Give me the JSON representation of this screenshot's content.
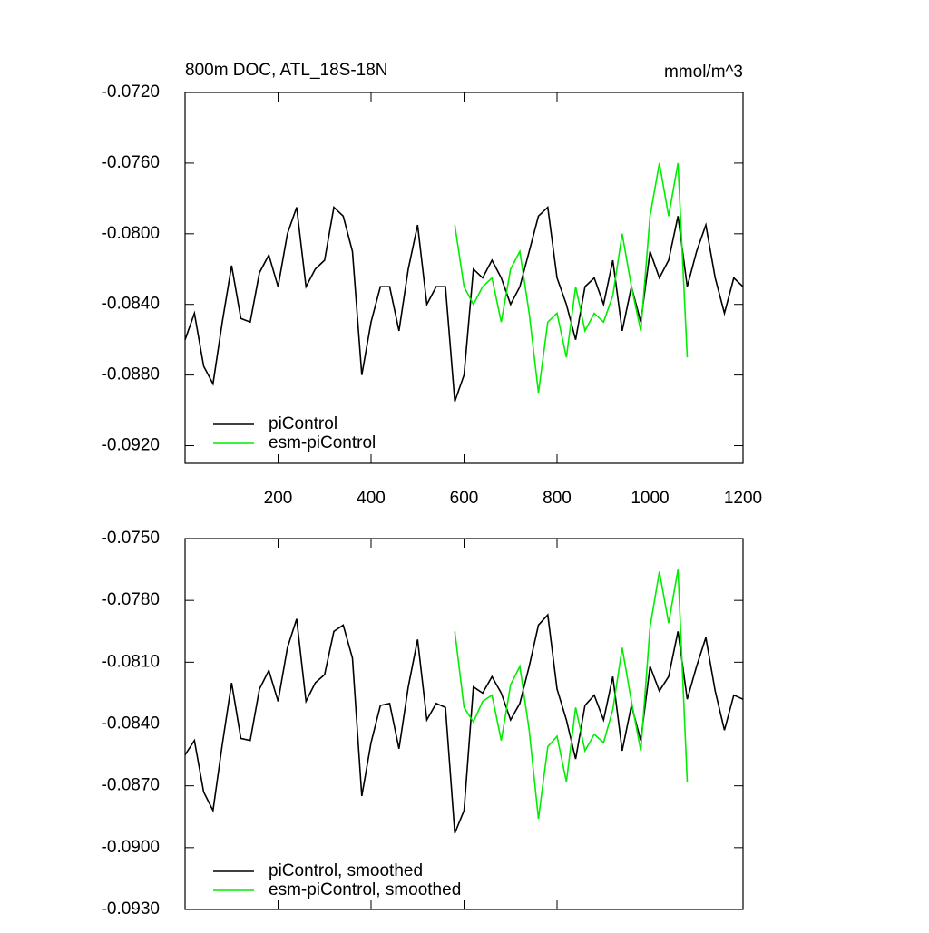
{
  "chart_data": [
    {
      "type": "line",
      "title": "800m DOC, ATL_18S-18N",
      "units": "mmol/m^3",
      "xlim": [
        0,
        1200
      ],
      "xticks": [
        200,
        400,
        600,
        800,
        1000,
        1200
      ],
      "ylim": [
        -0.093,
        -0.072
      ],
      "yticks": [
        {
          "value": -0.072,
          "label": "-0.0720"
        },
        {
          "value": -0.076,
          "label": "-0.0760"
        },
        {
          "value": -0.08,
          "label": "-0.0800"
        },
        {
          "value": -0.084,
          "label": "-0.0840"
        },
        {
          "value": -0.088,
          "label": "-0.0880"
        },
        {
          "value": -0.092,
          "label": "-0.0920"
        }
      ],
      "series": [
        {
          "name": "piControl",
          "color": "#000000",
          "x": [
            0,
            20,
            40,
            60,
            80,
            100,
            120,
            140,
            160,
            180,
            200,
            220,
            240,
            260,
            280,
            300,
            320,
            340,
            360,
            380,
            400,
            420,
            440,
            460,
            480,
            500,
            520,
            540,
            560,
            580,
            600,
            620,
            640,
            660,
            680,
            700,
            720,
            740,
            760,
            780,
            800,
            820,
            840,
            860,
            880,
            900,
            920,
            940,
            960,
            980,
            1000,
            1020,
            1040,
            1060,
            1080,
            1100,
            1120,
            1140,
            1160,
            1180,
            1200
          ],
          "values": [
            -0.086,
            -0.0845,
            -0.0875,
            -0.0885,
            -0.085,
            -0.0818,
            -0.0848,
            -0.085,
            -0.0822,
            -0.0812,
            -0.083,
            -0.08,
            -0.0785,
            -0.083,
            -0.082,
            -0.0815,
            -0.0785,
            -0.079,
            -0.081,
            -0.088,
            -0.085,
            -0.083,
            -0.083,
            -0.0855,
            -0.082,
            -0.0795,
            -0.084,
            -0.083,
            -0.083,
            -0.0895,
            -0.088,
            -0.082,
            -0.0825,
            -0.0815,
            -0.0825,
            -0.084,
            -0.083,
            -0.081,
            -0.079,
            -0.0785,
            -0.0825,
            -0.084,
            -0.086,
            -0.083,
            -0.0825,
            -0.084,
            -0.0815,
            -0.0855,
            -0.083,
            -0.085,
            -0.081,
            -0.0825,
            -0.0815,
            -0.079,
            -0.083,
            -0.081,
            -0.0795,
            -0.0825,
            -0.0845,
            -0.0825,
            -0.083
          ]
        },
        {
          "name": "esm-piControl",
          "color": "#00ee00",
          "x": [
            580,
            600,
            620,
            640,
            660,
            680,
            700,
            720,
            740,
            760,
            780,
            800,
            820,
            840,
            860,
            880,
            900,
            920,
            940,
            960,
            980,
            1000,
            1020,
            1040,
            1060,
            1080
          ],
          "values": [
            -0.0795,
            -0.083,
            -0.084,
            -0.083,
            -0.0825,
            -0.085,
            -0.082,
            -0.081,
            -0.0845,
            -0.089,
            -0.085,
            -0.0845,
            -0.087,
            -0.083,
            -0.0855,
            -0.0845,
            -0.085,
            -0.0835,
            -0.08,
            -0.083,
            -0.0855,
            -0.079,
            -0.076,
            -0.079,
            -0.076,
            -0.087
          ]
        }
      ]
    },
    {
      "type": "line",
      "xlim": [
        0,
        1200
      ],
      "xticks": [
        200,
        400,
        600,
        800,
        1000,
        1200
      ],
      "ylim": [
        -0.093,
        -0.075
      ],
      "yticks": [
        {
          "value": -0.075,
          "label": "-0.0750"
        },
        {
          "value": -0.078,
          "label": "-0.0780"
        },
        {
          "value": -0.081,
          "label": "-0.0810"
        },
        {
          "value": -0.084,
          "label": "-0.0840"
        },
        {
          "value": -0.087,
          "label": "-0.0870"
        },
        {
          "value": -0.09,
          "label": "-0.0900"
        },
        {
          "value": -0.093,
          "label": "-0.0930"
        }
      ],
      "series": [
        {
          "name": "piControl, smoothed",
          "color": "#000000",
          "x": [
            0,
            20,
            40,
            60,
            80,
            100,
            120,
            140,
            160,
            180,
            200,
            220,
            240,
            260,
            280,
            300,
            320,
            340,
            360,
            380,
            400,
            420,
            440,
            460,
            480,
            500,
            520,
            540,
            560,
            580,
            600,
            620,
            640,
            660,
            680,
            700,
            720,
            740,
            760,
            780,
            800,
            820,
            840,
            860,
            880,
            900,
            920,
            940,
            960,
            980,
            1000,
            1020,
            1040,
            1060,
            1080,
            1100,
            1120,
            1140,
            1160,
            1180,
            1200
          ],
          "values": [
            -0.0855,
            -0.0848,
            -0.0873,
            -0.0882,
            -0.085,
            -0.082,
            -0.0847,
            -0.0848,
            -0.0823,
            -0.0814,
            -0.0829,
            -0.0803,
            -0.0789,
            -0.0829,
            -0.082,
            -0.0816,
            -0.0795,
            -0.0792,
            -0.0808,
            -0.0875,
            -0.0849,
            -0.0831,
            -0.083,
            -0.0852,
            -0.0822,
            -0.0799,
            -0.0838,
            -0.083,
            -0.0832,
            -0.0893,
            -0.0882,
            -0.0822,
            -0.0825,
            -0.0817,
            -0.0825,
            -0.0838,
            -0.083,
            -0.0812,
            -0.0792,
            -0.0787,
            -0.0823,
            -0.0838,
            -0.0857,
            -0.0831,
            -0.0826,
            -0.0838,
            -0.0817,
            -0.0853,
            -0.0831,
            -0.0848,
            -0.0812,
            -0.0824,
            -0.0817,
            -0.0795,
            -0.0828,
            -0.0812,
            -0.0798,
            -0.0824,
            -0.0843,
            -0.0826,
            -0.0828
          ]
        },
        {
          "name": "esm-piControl, smoothed",
          "color": "#00ee00",
          "x": [
            580,
            600,
            620,
            640,
            660,
            680,
            700,
            720,
            740,
            760,
            780,
            800,
            820,
            840,
            860,
            880,
            900,
            920,
            940,
            960,
            980,
            1000,
            1020,
            1040,
            1060,
            1080
          ],
          "values": [
            -0.0795,
            -0.0832,
            -0.0839,
            -0.0829,
            -0.0826,
            -0.0848,
            -0.0821,
            -0.0812,
            -0.0843,
            -0.0886,
            -0.0851,
            -0.0846,
            -0.0868,
            -0.0832,
            -0.0853,
            -0.0845,
            -0.0849,
            -0.0833,
            -0.0803,
            -0.0829,
            -0.0853,
            -0.0793,
            -0.0766,
            -0.0791,
            -0.0765,
            -0.0868
          ]
        }
      ]
    }
  ]
}
